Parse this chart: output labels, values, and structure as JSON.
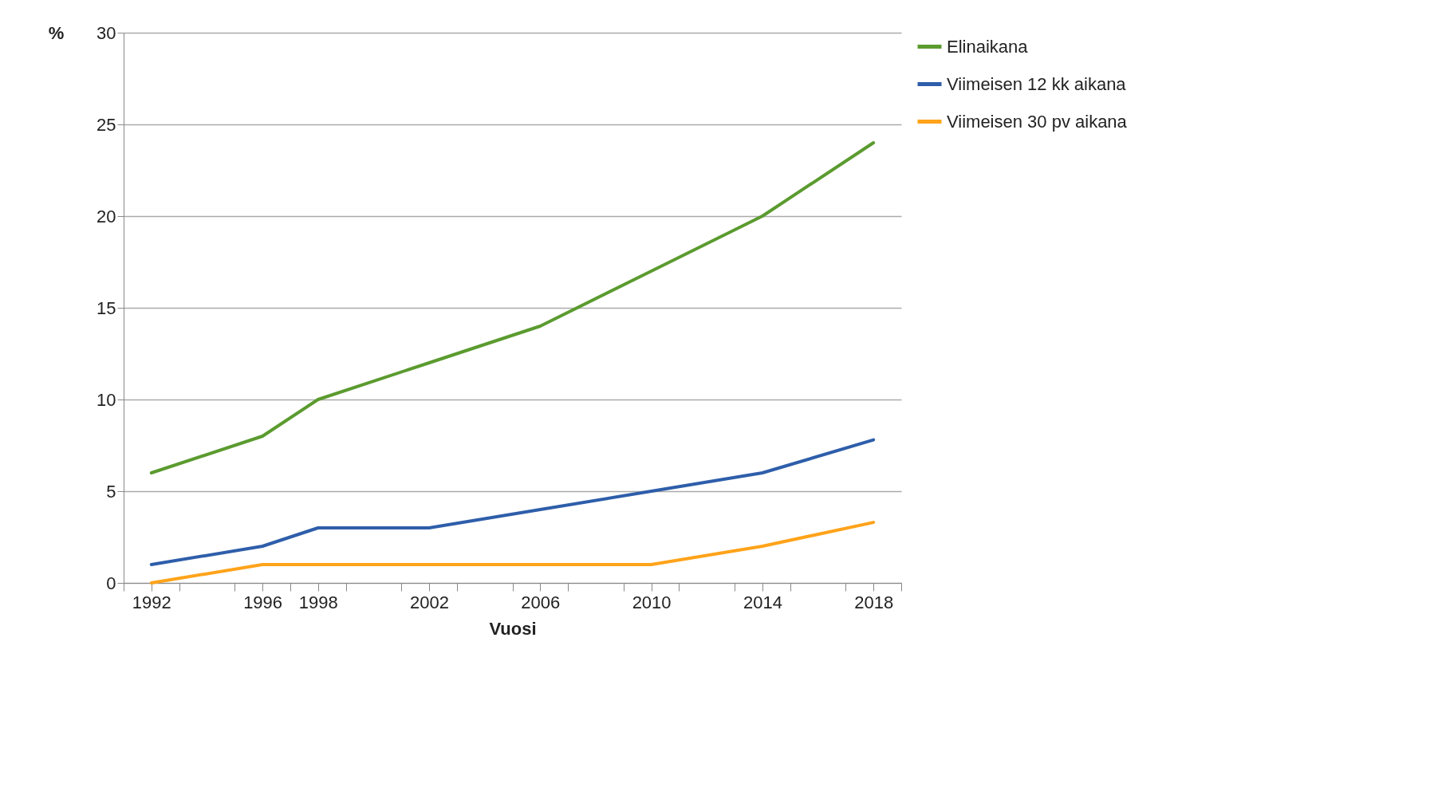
{
  "chart_data": {
    "type": "line",
    "xlabel": "Vuosi",
    "ylabel": "%",
    "x": [
      1992,
      1996,
      1998,
      2002,
      2006,
      2010,
      2014,
      2018
    ],
    "series": [
      {
        "name": "Elinaikana",
        "color": "#5b9b2f",
        "values": [
          6,
          8,
          10,
          12,
          14,
          17,
          20,
          24
        ]
      },
      {
        "name": "Viimeisen 12 kk aikana",
        "color": "#2e5eaa",
        "values": [
          1,
          2,
          3,
          3,
          4,
          5,
          6,
          7.8
        ]
      },
      {
        "name": "Viimeisen 30 pv aikana",
        "color": "#ffa31a",
        "values": [
          0,
          1,
          1,
          1,
          1,
          1,
          2,
          3.3
        ]
      }
    ],
    "xlim": [
      1991,
      2019
    ],
    "xticks": [
      {
        "value": 1991,
        "label": null
      },
      1992,
      {
        "value": 1993,
        "label": null
      },
      {
        "value": 1995,
        "label": null
      },
      1996,
      {
        "value": 1997,
        "label": null
      },
      1998,
      {
        "value": 1999,
        "label": null
      },
      {
        "value": 2001,
        "label": null
      },
      2002,
      {
        "value": 2003,
        "label": null
      },
      {
        "value": 2005,
        "label": null
      },
      2006,
      {
        "value": 2007,
        "label": null
      },
      {
        "value": 2009,
        "label": null
      },
      2010,
      {
        "value": 2011,
        "label": null
      },
      {
        "value": 2013,
        "label": null
      },
      2014,
      {
        "value": 2015,
        "label": null
      },
      {
        "value": 2017,
        "label": null
      },
      2018,
      {
        "value": 2019,
        "label": null
      }
    ],
    "ylim": [
      0,
      30
    ],
    "yticks": [
      0,
      5,
      10,
      15,
      20,
      25,
      30
    ],
    "grid": "y",
    "legend": "right",
    "marker": "none",
    "line_style": "solid"
  }
}
